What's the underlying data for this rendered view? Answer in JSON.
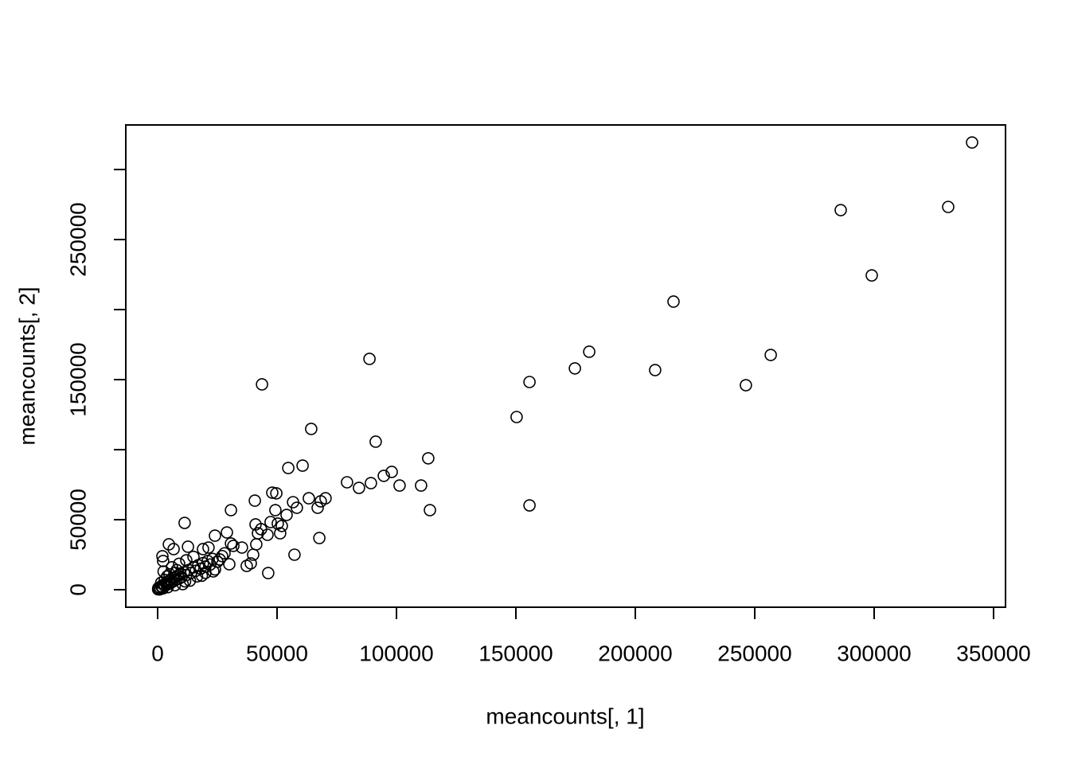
{
  "chart_data": {
    "type": "scatter",
    "xlabel": "meancounts[, 1]",
    "ylabel": "meancounts[, 2]",
    "color": "#000000",
    "x": [
      341000,
      331000,
      286000,
      299000,
      216000,
      180700,
      256700,
      174700,
      208300,
      155700,
      246300,
      150300,
      88700,
      43700,
      64300,
      91300,
      113300,
      60700,
      54700,
      98000,
      94700,
      79300,
      89300,
      84300,
      101300,
      110300,
      155700,
      114000,
      70300,
      68300,
      63300,
      48000,
      49700,
      56700,
      58300,
      67000,
      30700,
      40700,
      49300,
      54000,
      11300,
      41000,
      47300,
      50300,
      52000,
      43300,
      42000,
      46000,
      51300,
      67700,
      57300,
      46300,
      24000,
      29000,
      30700,
      31700,
      35300,
      41300,
      40000,
      37300,
      39000,
      4700,
      6700,
      12700,
      2000,
      2300,
      19000,
      21300,
      26000,
      30000,
      23300,
      500,
      1000,
      1500,
      2000,
      2500,
      3000,
      3500,
      4000,
      4500,
      5000,
      5500,
      6000,
      6500,
      7000,
      7500,
      8000,
      8500,
      9000,
      9500,
      10000,
      11000,
      12000,
      13000,
      14000,
      15000,
      16000,
      17000,
      18000,
      19000,
      20000,
      21000,
      22000,
      23000,
      25000,
      27000,
      28000,
      10500,
      13500,
      18500,
      8000,
      5000,
      3000,
      6000,
      9000,
      12000,
      15000,
      1500,
      200,
      800,
      2200,
      4200,
      7200,
      11500,
      16500,
      20000,
      24000,
      2500,
      4000,
      7500,
      300
    ],
    "values": [
      319300,
      273300,
      271000,
      224400,
      205700,
      169900,
      167600,
      158000,
      156800,
      148300,
      146000,
      123300,
      164800,
      146600,
      114800,
      105700,
      93800,
      88600,
      86900,
      84100,
      81300,
      76700,
      76100,
      72700,
      74400,
      74400,
      60200,
      56800,
      65300,
      63100,
      65300,
      69300,
      68800,
      62500,
      58500,
      58500,
      56800,
      63600,
      56800,
      53400,
      47700,
      46600,
      48300,
      47200,
      45500,
      43200,
      40300,
      39200,
      40300,
      36900,
      25000,
      11900,
      38600,
      40900,
      33000,
      31300,
      30100,
      32400,
      25000,
      17000,
      18800,
      32400,
      29000,
      30700,
      23900,
      20500,
      29000,
      30100,
      21600,
      18200,
      13100,
      800,
      1500,
      2500,
      1800,
      3500,
      2800,
      4500,
      3800,
      6000,
      4500,
      7000,
      5500,
      8500,
      6500,
      9000,
      7500,
      10000,
      8000,
      11500,
      9000,
      12500,
      10500,
      14000,
      12000,
      16000,
      13500,
      17500,
      15000,
      19000,
      16500,
      20500,
      18000,
      22000,
      20000,
      24000,
      26000,
      4000,
      6500,
      10000,
      14000,
      11000,
      7000,
      16000,
      18500,
      21000,
      23500,
      5000,
      300,
      200,
      900,
      1800,
      3200,
      6000,
      9500,
      12000,
      14500,
      13000,
      9500,
      12000,
      1200
    ],
    "xlim": [
      -13333,
      355000
    ],
    "ylim": [
      -12500,
      331818
    ],
    "xticks": [
      0,
      50000,
      100000,
      150000,
      200000,
      250000,
      300000,
      350000
    ],
    "yticks": [
      0,
      50000,
      {
        "value": 100000,
        "label": null
      },
      150000,
      {
        "value": 200000,
        "label": null
      },
      250000,
      {
        "value": 300000,
        "label": null
      }
    ]
  }
}
